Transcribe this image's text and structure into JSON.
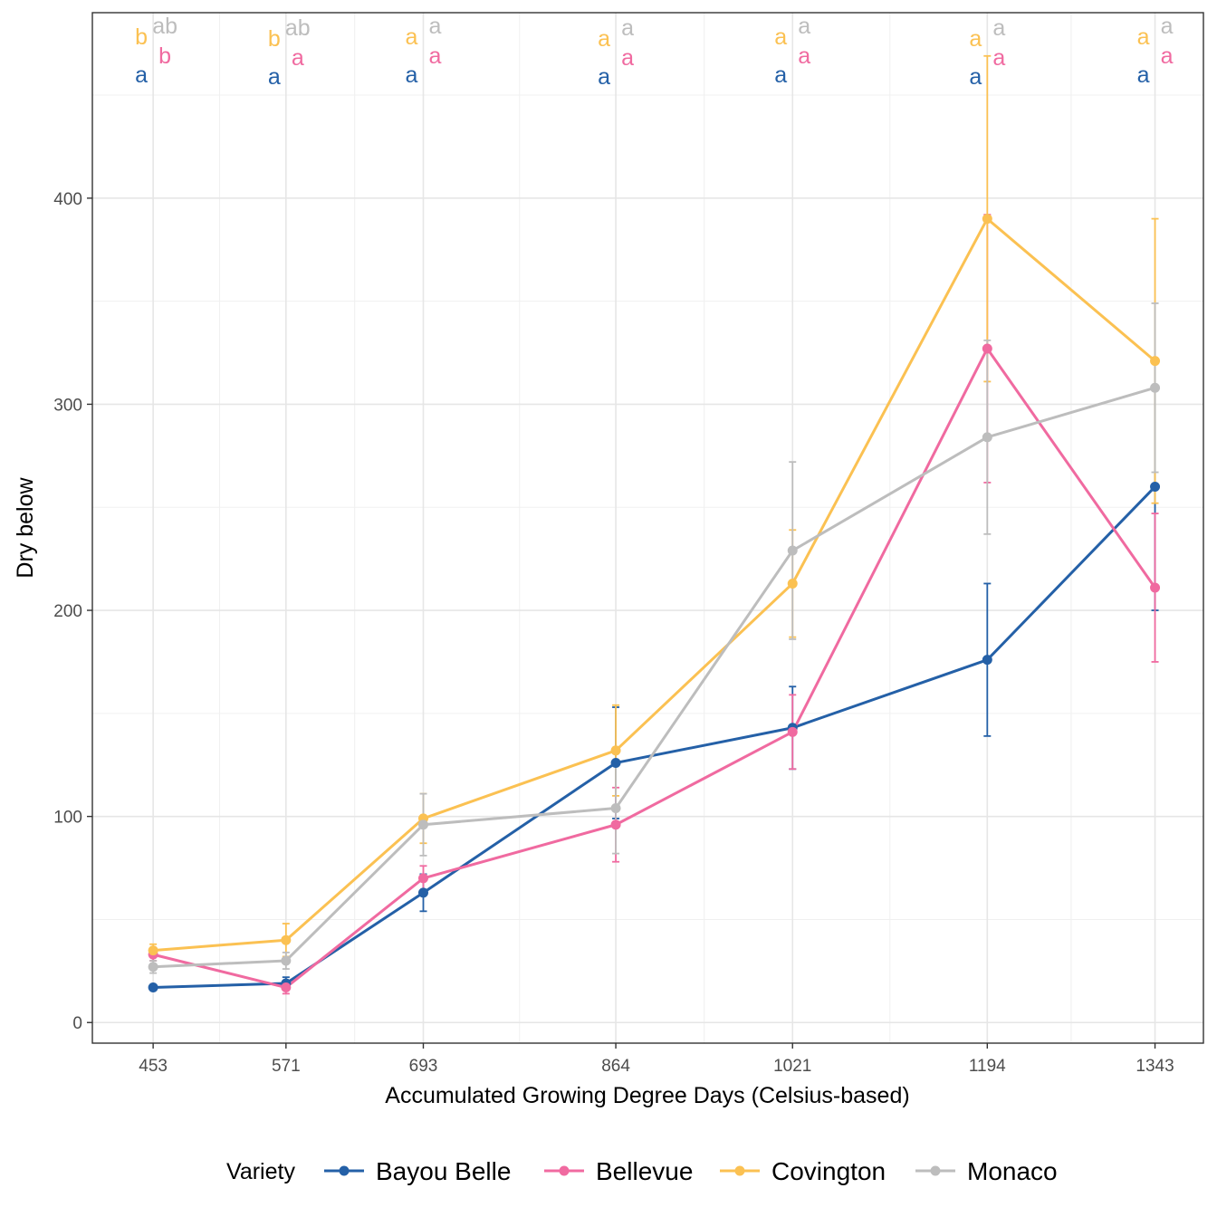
{
  "chart_data": {
    "type": "line",
    "xlabel": "Accumulated Growing Degree Days (Celsius-based)",
    "ylabel": "Dry below",
    "x": [
      453,
      571,
      693,
      864,
      1021,
      1194,
      1343
    ],
    "x_tick_labels": [
      "453",
      "571",
      "693",
      "864",
      "1021",
      "1194",
      "1343"
    ],
    "y_ticks": [
      0,
      100,
      200,
      300,
      400
    ],
    "y_tick_labels": [
      "0",
      "100",
      "200",
      "300",
      "400"
    ],
    "ylim": [
      -10,
      490
    ],
    "xlim": [
      399,
      1386
    ],
    "grid": true,
    "legend_title": "Variety",
    "legend_position": "bottom",
    "series": [
      {
        "name": "Bayou Belle",
        "color": "#2460a7",
        "values": [
          17,
          19,
          63,
          126,
          143,
          176,
          260
        ],
        "error": [
          1,
          3,
          9,
          27,
          20,
          37,
          60
        ],
        "letters": [
          "a",
          "a",
          "a",
          "a",
          "a",
          "a",
          "a"
        ]
      },
      {
        "name": "Bellevue",
        "color": "#f06aa0",
        "values": [
          33,
          17,
          70,
          96,
          141,
          327,
          211
        ],
        "error": [
          3,
          3,
          6,
          18,
          18,
          65,
          36
        ],
        "letters": [
          "b",
          "a",
          "a",
          "a",
          "a",
          "a",
          "a"
        ]
      },
      {
        "name": "Covington",
        "color": "#fbc152",
        "values": [
          35,
          40,
          99,
          132,
          213,
          390,
          321
        ],
        "error": [
          3,
          8,
          12,
          22,
          26,
          79,
          69
        ],
        "letters": [
          "b",
          "b",
          "a",
          "a",
          "a",
          "a",
          "a"
        ]
      },
      {
        "name": "Monaco",
        "color": "#bdbdbd",
        "values": [
          27,
          30,
          96,
          104,
          229,
          284,
          308
        ],
        "error": [
          3,
          4,
          15,
          22,
          43,
          47,
          41
        ],
        "letters": [
          "ab",
          "ab",
          "a",
          "a",
          "a",
          "a",
          "a"
        ]
      }
    ]
  }
}
